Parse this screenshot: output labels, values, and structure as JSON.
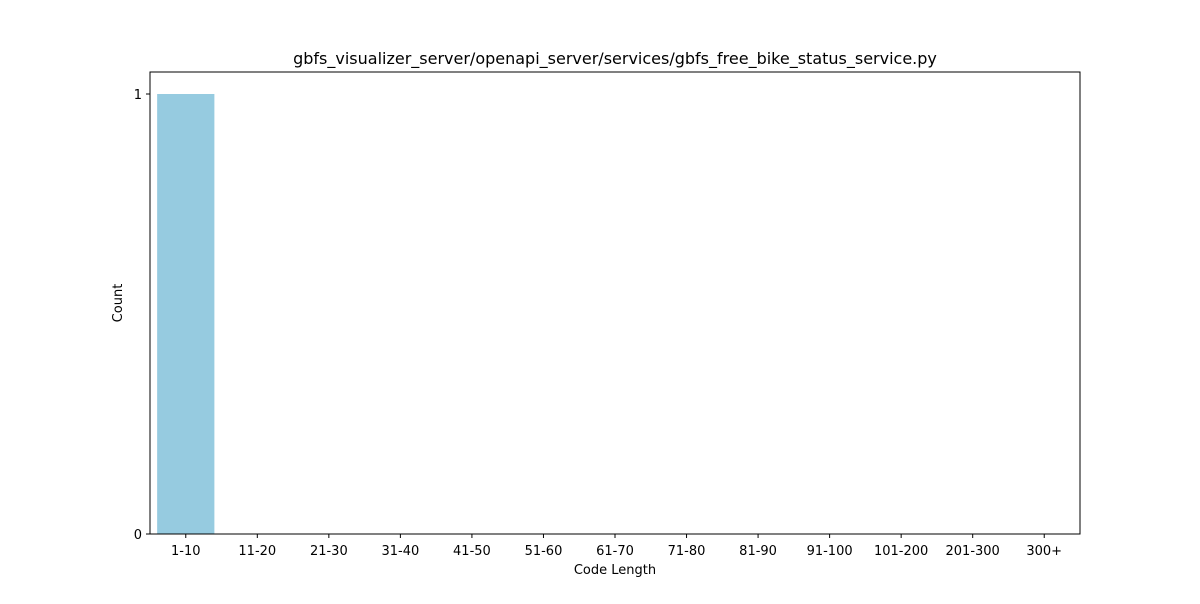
{
  "chart_data": {
    "type": "bar",
    "title": "gbfs_visualizer_server/openapi_server/services/gbfs_free_bike_status_service.py",
    "xlabel": "Code Length",
    "ylabel": "Count",
    "categories": [
      "1-10",
      "11-20",
      "21-30",
      "31-40",
      "41-50",
      "51-60",
      "61-70",
      "71-80",
      "81-90",
      "91-100",
      "101-200",
      "201-300",
      "300+"
    ],
    "values": [
      1,
      0,
      0,
      0,
      0,
      0,
      0,
      0,
      0,
      0,
      0,
      0,
      0
    ],
    "ylim": [
      0,
      1.05
    ],
    "yticks": [
      0,
      1
    ],
    "grid": false,
    "legend": "none",
    "bar_color": "#96cbe0"
  }
}
